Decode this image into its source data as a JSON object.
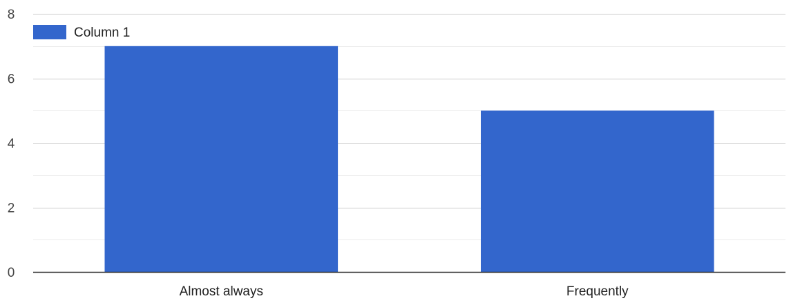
{
  "chart_data": {
    "type": "bar",
    "categories": [
      "Almost always",
      "Frequently"
    ],
    "series": [
      {
        "name": "Column 1",
        "values": [
          7,
          5
        ]
      }
    ],
    "title": "",
    "xlabel": "",
    "ylabel": "",
    "ylim": [
      0,
      8
    ],
    "y_ticks": [
      "0",
      "2",
      "4",
      "6",
      "8"
    ],
    "grid": true,
    "legend": "top-left"
  },
  "colors": {
    "bar": "#3366cc",
    "major_grid": "#cccccc",
    "minor_grid": "#ebebeb",
    "baseline": "#333333"
  }
}
